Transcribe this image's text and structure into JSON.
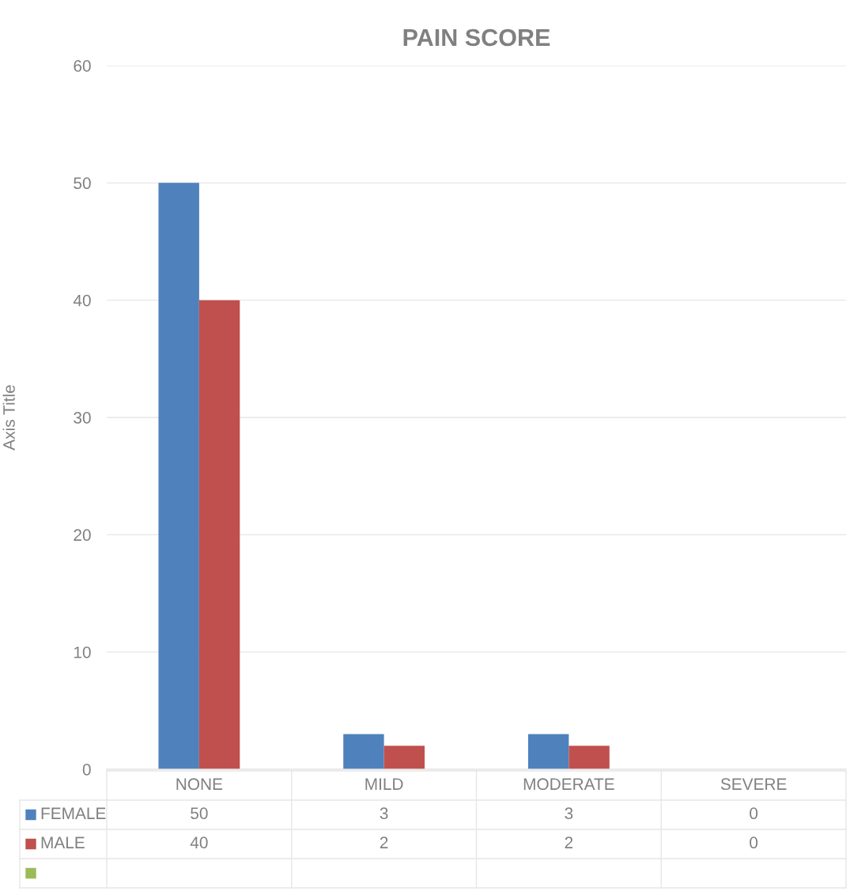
{
  "chart_data": {
    "type": "bar",
    "title": "PAIN SCORE",
    "ylabel": "Axis Title",
    "categories": [
      "NONE",
      "MILD",
      "MODERATE",
      "SEVERE"
    ],
    "series": [
      {
        "name": "FEMALE",
        "color": "#4f81bd",
        "values": [
          50,
          3,
          3,
          0
        ]
      },
      {
        "name": "MALE",
        "color": "#c0504d",
        "values": [
          40,
          2,
          2,
          0
        ]
      },
      {
        "color": "#9bbb59",
        "values": [
          null,
          null,
          null,
          null
        ]
      }
    ],
    "ylim": [
      0,
      60
    ],
    "yticks": [
      0,
      10,
      20,
      30,
      40,
      50,
      60
    ],
    "grid": "y",
    "data_labels": true,
    "legend": "bottom left"
  }
}
